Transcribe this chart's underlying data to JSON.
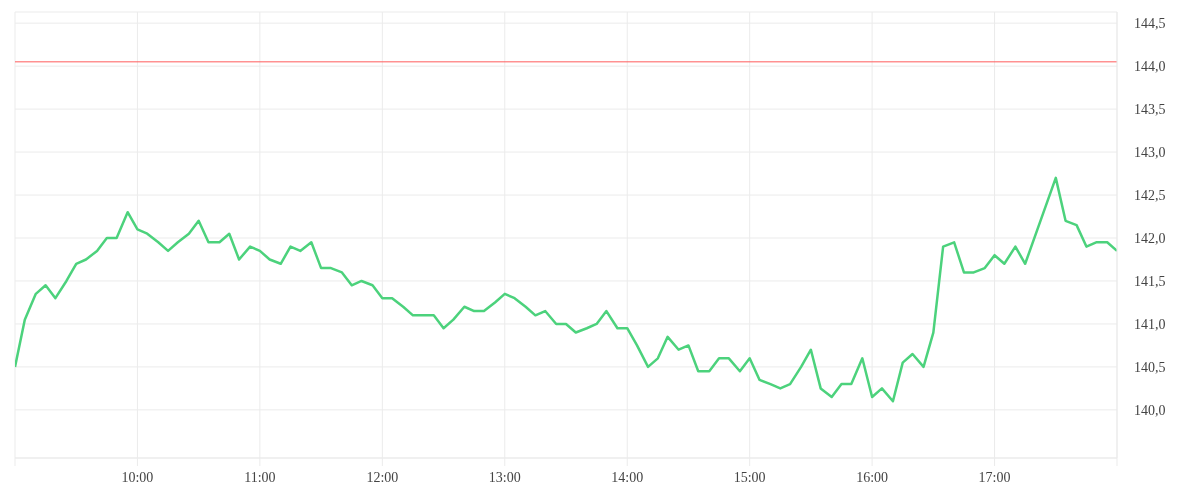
{
  "chart_data": {
    "type": "line",
    "x": [
      9,
      9.08,
      9.17,
      9.25,
      9.33,
      9.42,
      9.5,
      9.58,
      9.67,
      9.75,
      9.83,
      9.92,
      10,
      10.08,
      10.17,
      10.25,
      10.33,
      10.42,
      10.5,
      10.58,
      10.67,
      10.75,
      10.83,
      10.92,
      11,
      11.08,
      11.17,
      11.25,
      11.33,
      11.42,
      11.5,
      11.58,
      11.67,
      11.75,
      11.83,
      11.92,
      12,
      12.08,
      12.17,
      12.25,
      12.33,
      12.42,
      12.5,
      12.58,
      12.67,
      12.75,
      12.83,
      12.92,
      13,
      13.08,
      13.17,
      13.25,
      13.33,
      13.42,
      13.5,
      13.58,
      13.67,
      13.75,
      13.83,
      13.92,
      14,
      14.08,
      14.17,
      14.25,
      14.33,
      14.42,
      14.5,
      14.58,
      14.67,
      14.75,
      14.83,
      14.92,
      15,
      15.08,
      15.17,
      15.25,
      15.33,
      15.42,
      15.5,
      15.58,
      15.67,
      15.75,
      15.83,
      15.92,
      16,
      16.08,
      16.17,
      16.25,
      16.33,
      16.42,
      16.5,
      16.58,
      16.67,
      16.75,
      16.83,
      16.92,
      17,
      17.08,
      17.17,
      17.25,
      17.5,
      17.58,
      17.67,
      17.75,
      17.83,
      17.92,
      18
    ],
    "series": [
      {
        "color": "#4cd27c",
        "values": [
          140.5,
          141.05,
          141.35,
          141.45,
          141.3,
          141.5,
          141.7,
          141.75,
          141.85,
          142.0,
          142.0,
          142.3,
          142.1,
          142.05,
          141.95,
          141.85,
          141.95,
          142.05,
          142.2,
          141.95,
          141.95,
          142.05,
          141.75,
          141.9,
          141.85,
          141.75,
          141.7,
          141.9,
          141.85,
          141.95,
          141.65,
          141.65,
          141.6,
          141.45,
          141.5,
          141.45,
          141.3,
          141.3,
          141.2,
          141.1,
          141.1,
          141.1,
          140.95,
          141.05,
          141.2,
          141.15,
          141.15,
          141.25,
          141.35,
          141.3,
          141.2,
          141.1,
          141.15,
          141.0,
          141.0,
          140.9,
          140.95,
          141.0,
          141.15,
          140.95,
          140.95,
          140.75,
          140.5,
          140.6,
          140.85,
          140.7,
          140.75,
          140.45,
          140.45,
          140.6,
          140.6,
          140.45,
          140.6,
          140.35,
          140.3,
          140.25,
          140.3,
          140.5,
          140.7,
          140.25,
          140.15,
          140.3,
          140.3,
          140.6,
          140.15,
          140.25,
          140.1,
          140.55,
          140.65,
          140.5,
          140.9,
          141.9,
          141.95,
          141.6,
          141.6,
          141.65,
          141.8,
          141.7,
          141.9,
          141.7,
          142.7,
          142.2,
          142.15,
          141.9,
          141.95,
          141.95,
          141.85
        ]
      }
    ],
    "xlim": [
      9,
      18
    ],
    "xticks": [
      {
        "value": 9,
        "label": null
      },
      {
        "value": 10,
        "label": "10:00"
      },
      {
        "value": 11,
        "label": "11:00"
      },
      {
        "value": 12,
        "label": "12:00"
      },
      {
        "value": 13,
        "label": "13:00"
      },
      {
        "value": 14,
        "label": "14:00"
      },
      {
        "value": 15,
        "label": "15:00"
      },
      {
        "value": 16,
        "label": "16:00"
      },
      {
        "value": 17,
        "label": "17:00"
      },
      {
        "value": 18,
        "label": null
      }
    ],
    "ylim": [
      139.44,
      144.63
    ],
    "yticks": [
      {
        "value": 140,
        "label": "140,0"
      },
      {
        "value": 140.5,
        "label": "140,5"
      },
      {
        "value": 141,
        "label": "141,0"
      },
      {
        "value": 141.5,
        "label": "141,5"
      },
      {
        "value": 142,
        "label": "142,0"
      },
      {
        "value": 142.5,
        "label": "142,5"
      },
      {
        "value": 143,
        "label": "143,0"
      },
      {
        "value": 143.5,
        "label": "143,5"
      },
      {
        "value": 144,
        "label": "144,0"
      },
      {
        "value": 144.5,
        "label": "144,5"
      }
    ],
    "grid": true,
    "ref_lines": [
      {
        "axis": "y",
        "value": 144.05,
        "color": "#ff5c5c"
      }
    ]
  }
}
